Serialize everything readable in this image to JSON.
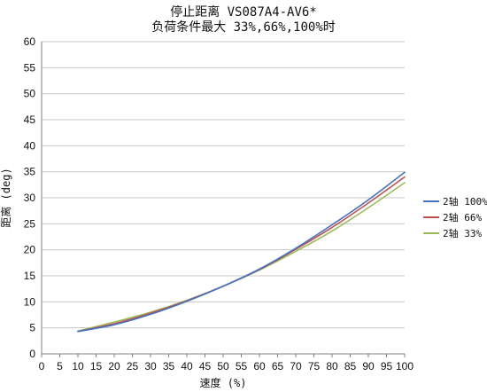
{
  "chart_data": {
    "type": "line",
    "title": "停止距离 VS087A4-AV6*",
    "subtitle": "负荷条件最大 33%,66%,100%时",
    "xlabel": "速度 (%)",
    "ylabel": "距离 (deg)",
    "xlim": [
      0,
      100
    ],
    "ylim": [
      0,
      60
    ],
    "x_ticks": [
      "0",
      "5",
      "10",
      "15",
      "20",
      "25",
      "30",
      "35",
      "40",
      "45",
      "50",
      "55",
      "60",
      "65",
      "70",
      "75",
      "80",
      "85",
      "90",
      "95",
      "100"
    ],
    "y_ticks": [
      "0",
      "5",
      "10",
      "15",
      "20",
      "25",
      "30",
      "35",
      "40",
      "45",
      "50",
      "55",
      "60"
    ],
    "grid": {
      "horizontal": true,
      "vertical": false
    },
    "legend_position": "right",
    "series": [
      {
        "name": "2轴 100%",
        "color": "#4472C4",
        "x": [
          10,
          20,
          30,
          40,
          50,
          60,
          70,
          80,
          90,
          100
        ],
        "values": [
          4.3,
          5.6,
          7.6,
          10.1,
          13.0,
          16.3,
          20.3,
          24.8,
          29.6,
          34.9
        ]
      },
      {
        "name": "2轴 66%",
        "color": "#C0504D",
        "x": [
          10,
          20,
          30,
          40,
          50,
          60,
          70,
          80,
          90,
          100
        ],
        "values": [
          4.3,
          5.8,
          7.8,
          10.2,
          13.0,
          16.2,
          20.1,
          24.3,
          29.0,
          34.0
        ]
      },
      {
        "name": "2轴 33%",
        "color": "#9BBB59",
        "x": [
          10,
          20,
          30,
          40,
          50,
          60,
          70,
          80,
          90,
          100
        ],
        "values": [
          4.4,
          6.1,
          8.0,
          10.3,
          13.0,
          16.1,
          19.7,
          23.6,
          28.1,
          32.9
        ]
      }
    ]
  }
}
